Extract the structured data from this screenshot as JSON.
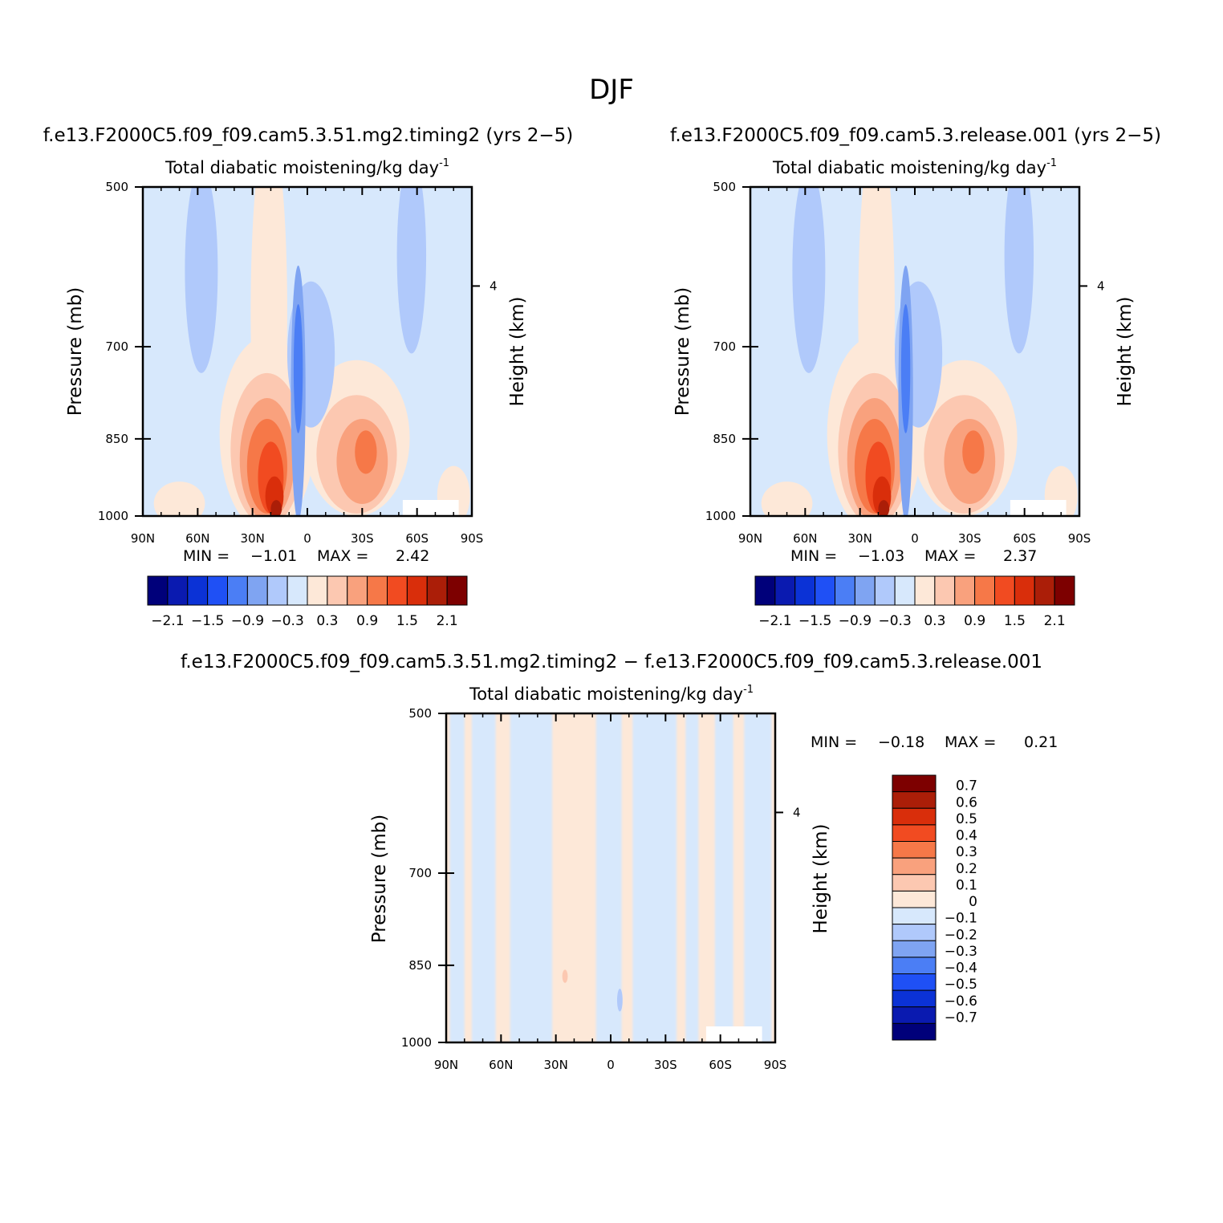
{
  "figure_title": "DJF",
  "chart_data": [
    {
      "type": "heatmap",
      "case_title": "f.e13.F2000C5.f09_f09.cam5.3.51.mg2.timing2 (yrs 2-5)",
      "title": "Total diabatic moistening/kg day",
      "title_exponent": "-1",
      "ylabel": "Pressure (mb)",
      "ylabel_right": "Height (km)",
      "y_ticks": [
        "500",
        "700",
        "850",
        "1000"
      ],
      "y_right_ticks": [
        "4"
      ],
      "x_ticks": [
        "90N",
        "60N",
        "30N",
        "0",
        "30S",
        "60S",
        "90S"
      ],
      "xlim": [
        -90,
        90
      ],
      "ylim": [
        1000,
        500
      ],
      "min_label": "MIN =",
      "min_value": "-1.01",
      "max_label": "MAX =",
      "max_value": "2.42",
      "colorbar": {
        "orientation": "horizontal",
        "labels": [
          "-2.1",
          "-1.5",
          "-0.9",
          "-0.3",
          "0.3",
          "0.9",
          "1.5",
          "2.1"
        ],
        "colors": [
          "#00007a",
          "#0a1ab0",
          "#0b32d6",
          "#1f50f5",
          "#4b7ef5",
          "#7fa4f2",
          "#b0c9fb",
          "#d7e8fc",
          "#fde8d8",
          "#fcc8b1",
          "#f9a17d",
          "#f67848",
          "#f14b21",
          "#d92e0b",
          "#ab1e08",
          "#7d0000"
        ]
      },
      "field": {
        "bg": "#d7e8fc",
        "blobs": [
          {
            "x": -58,
            "p": 610,
            "rx": 9,
            "rp": 130,
            "color": "#b0c9fb"
          },
          {
            "x": 57,
            "p": 590,
            "rx": 8,
            "rp": 120,
            "color": "#b0c9fb"
          },
          {
            "x": -21,
            "p": 700,
            "rx": 10,
            "rp": 260,
            "color": "#fde8d8"
          },
          {
            "x": -22,
            "p": 860,
            "rx": 26,
            "rp": 175,
            "color": "#fde8d8"
          },
          {
            "x": 27,
            "p": 860,
            "rx": 29,
            "rp": 140,
            "color": "#fde8d8"
          },
          {
            "x": -70,
            "p": 975,
            "rx": 14,
            "rp": 45,
            "color": "#fde8d8"
          },
          {
            "x": 80,
            "p": 960,
            "rx": 9,
            "rp": 60,
            "color": "#fde8d8"
          },
          {
            "x": -22,
            "p": 880,
            "rx": 20,
            "rp": 140,
            "color": "#fcc8b1"
          },
          {
            "x": 27,
            "p": 885,
            "rx": 22,
            "rp": 110,
            "color": "#fcc8b1"
          },
          {
            "x": -22,
            "p": 895,
            "rx": 15,
            "rp": 115,
            "color": "#f9a17d"
          },
          {
            "x": 30,
            "p": 895,
            "rx": 14,
            "rp": 80,
            "color": "#f9a17d"
          },
          {
            "x": -22,
            "p": 905,
            "rx": 11,
            "rp": 90,
            "color": "#f67848"
          },
          {
            "x": 32,
            "p": 875,
            "rx": 6,
            "rp": 40,
            "color": "#f67848"
          },
          {
            "x": -20,
            "p": 925,
            "rx": 7,
            "rp": 70,
            "color": "#f14b21"
          },
          {
            "x": -18,
            "p": 960,
            "rx": 5,
            "rp": 40,
            "color": "#d92e0b"
          },
          {
            "x": -17,
            "p": 985,
            "rx": 3,
            "rp": 18,
            "color": "#ab1e08"
          },
          {
            "x": 2,
            "p": 720,
            "rx": 13,
            "rp": 110,
            "color": "#b0c9fb"
          },
          {
            "x": -5,
            "p": 800,
            "rx": 4,
            "rp": 210,
            "color": "#7fa4f2"
          },
          {
            "x": -5,
            "p": 740,
            "rx": 2.5,
            "rp": 100,
            "color": "#4b7ef5"
          }
        ]
      },
      "contour_levels": [
        -2.1,
        -1.8,
        -1.5,
        -1.2,
        -0.9,
        -0.6,
        -0.3,
        0,
        0.3,
        0.6,
        0.9,
        1.2,
        1.5,
        1.8,
        2.1
      ],
      "grid": false
    },
    {
      "type": "heatmap",
      "case_title": "f.e13.F2000C5.f09_f09.cam5.3.release.001 (yrs 2-5)",
      "title": "Total diabatic moistening/kg day",
      "title_exponent": "-1",
      "ylabel": "Pressure (mb)",
      "ylabel_right": "Height (km)",
      "y_ticks": [
        "500",
        "700",
        "850",
        "1000"
      ],
      "y_right_ticks": [
        "4"
      ],
      "x_ticks": [
        "90N",
        "60N",
        "30N",
        "0",
        "30S",
        "60S",
        "90S"
      ],
      "xlim": [
        -90,
        90
      ],
      "ylim": [
        1000,
        500
      ],
      "min_label": "MIN =",
      "min_value": "-1.03",
      "max_label": "MAX =",
      "max_value": "2.37",
      "colorbar": {
        "orientation": "horizontal",
        "labels": [
          "-2.1",
          "-1.5",
          "-0.9",
          "-0.3",
          "0.3",
          "0.9",
          "1.5",
          "2.1"
        ],
        "colors": [
          "#00007a",
          "#0a1ab0",
          "#0b32d6",
          "#1f50f5",
          "#4b7ef5",
          "#7fa4f2",
          "#b0c9fb",
          "#d7e8fc",
          "#fde8d8",
          "#fcc8b1",
          "#f9a17d",
          "#f67848",
          "#f14b21",
          "#d92e0b",
          "#ab1e08",
          "#7d0000"
        ]
      },
      "field": {
        "bg": "#d7e8fc",
        "blobs": [
          {
            "x": -58,
            "p": 610,
            "rx": 9,
            "rp": 130,
            "color": "#b0c9fb"
          },
          {
            "x": 57,
            "p": 590,
            "rx": 8,
            "rp": 120,
            "color": "#b0c9fb"
          },
          {
            "x": -21,
            "p": 700,
            "rx": 10,
            "rp": 260,
            "color": "#fde8d8"
          },
          {
            "x": -22,
            "p": 860,
            "rx": 26,
            "rp": 175,
            "color": "#fde8d8"
          },
          {
            "x": 27,
            "p": 860,
            "rx": 29,
            "rp": 140,
            "color": "#fde8d8"
          },
          {
            "x": -70,
            "p": 975,
            "rx": 14,
            "rp": 45,
            "color": "#fde8d8"
          },
          {
            "x": 80,
            "p": 960,
            "rx": 9,
            "rp": 60,
            "color": "#fde8d8"
          },
          {
            "x": -22,
            "p": 880,
            "rx": 20,
            "rp": 140,
            "color": "#fcc8b1"
          },
          {
            "x": 27,
            "p": 885,
            "rx": 22,
            "rp": 110,
            "color": "#fcc8b1"
          },
          {
            "x": -22,
            "p": 895,
            "rx": 15,
            "rp": 115,
            "color": "#f9a17d"
          },
          {
            "x": 30,
            "p": 895,
            "rx": 14,
            "rp": 80,
            "color": "#f9a17d"
          },
          {
            "x": -22,
            "p": 905,
            "rx": 11,
            "rp": 90,
            "color": "#f67848"
          },
          {
            "x": 32,
            "p": 875,
            "rx": 6,
            "rp": 40,
            "color": "#f67848"
          },
          {
            "x": -20,
            "p": 925,
            "rx": 7,
            "rp": 70,
            "color": "#f14b21"
          },
          {
            "x": -18,
            "p": 960,
            "rx": 5,
            "rp": 40,
            "color": "#d92e0b"
          },
          {
            "x": -17,
            "p": 985,
            "rx": 3,
            "rp": 18,
            "color": "#ab1e08"
          },
          {
            "x": 2,
            "p": 720,
            "rx": 13,
            "rp": 110,
            "color": "#b0c9fb"
          },
          {
            "x": -5,
            "p": 800,
            "rx": 4,
            "rp": 210,
            "color": "#7fa4f2"
          },
          {
            "x": -5,
            "p": 740,
            "rx": 2.5,
            "rp": 100,
            "color": "#4b7ef5"
          }
        ]
      },
      "contour_levels": [
        -2.1,
        -1.8,
        -1.5,
        -1.2,
        -0.9,
        -0.6,
        -0.3,
        0,
        0.3,
        0.6,
        0.9,
        1.2,
        1.5,
        1.8,
        2.1
      ],
      "grid": false
    },
    {
      "type": "heatmap",
      "case_title": "f.e13.F2000C5.f09_f09.cam5.3.51.mg2.timing2 - f.e13.F2000C5.f09_f09.cam5.3.release.001",
      "title": "Total diabatic moistening/kg day",
      "title_exponent": "-1",
      "ylabel": "Pressure (mb)",
      "ylabel_right": "Height (km)",
      "y_ticks": [
        "500",
        "700",
        "850",
        "1000"
      ],
      "y_right_ticks": [
        "4"
      ],
      "x_ticks": [
        "90N",
        "60N",
        "30N",
        "0",
        "30S",
        "60S",
        "90S"
      ],
      "xlim": [
        -90,
        90
      ],
      "ylim": [
        1000,
        500
      ],
      "min_label": "MIN =",
      "min_value": "-0.18",
      "max_label": "MAX =",
      "max_value": "0.21",
      "colorbar": {
        "orientation": "vertical",
        "labels": [
          "0.7",
          "0.6",
          "0.5",
          "0.4",
          "0.3",
          "0.2",
          "0.1",
          "0",
          "-0.1",
          "-0.2",
          "-0.3",
          "-0.4",
          "-0.5",
          "-0.6",
          "-0.7"
        ],
        "colors": [
          "#7d0000",
          "#ab1e08",
          "#d92e0b",
          "#f14b21",
          "#f67848",
          "#f9a17d",
          "#fcc8b1",
          "#fde8d8",
          "#d7e8fc",
          "#b0c9fb",
          "#7fa4f2",
          "#4b7ef5",
          "#1f50f5",
          "#0b32d6",
          "#0a1ab0",
          "#00007a"
        ]
      },
      "field": {
        "bg": "#fde8d8",
        "bands": [
          {
            "x0": -88,
            "x1": -80,
            "color": "#d7e8fc"
          },
          {
            "x0": -76,
            "x1": -63,
            "color": "#d7e8fc"
          },
          {
            "x0": -55,
            "x1": -32,
            "color": "#d7e8fc"
          },
          {
            "x0": -8,
            "x1": 6,
            "color": "#d7e8fc"
          },
          {
            "x0": 12,
            "x1": 36,
            "color": "#d7e8fc"
          },
          {
            "x0": 41,
            "x1": 48,
            "color": "#d7e8fc"
          },
          {
            "x0": 57,
            "x1": 67,
            "color": "#d7e8fc"
          },
          {
            "x0": 73,
            "x1": 88,
            "color": "#d7e8fc"
          }
        ],
        "blobs": [
          {
            "x": 5,
            "p": 915,
            "rx": 1.5,
            "rp": 22,
            "color": "#b0c9fb"
          },
          {
            "x": -25,
            "p": 870,
            "rx": 1.5,
            "rp": 12,
            "color": "#fcc8b1"
          }
        ]
      },
      "contour_levels": [
        -0.7,
        -0.6,
        -0.5,
        -0.4,
        -0.3,
        -0.2,
        -0.1,
        0,
        0.1,
        0.2,
        0.3,
        0.4,
        0.5,
        0.6,
        0.7
      ],
      "grid": false
    }
  ]
}
